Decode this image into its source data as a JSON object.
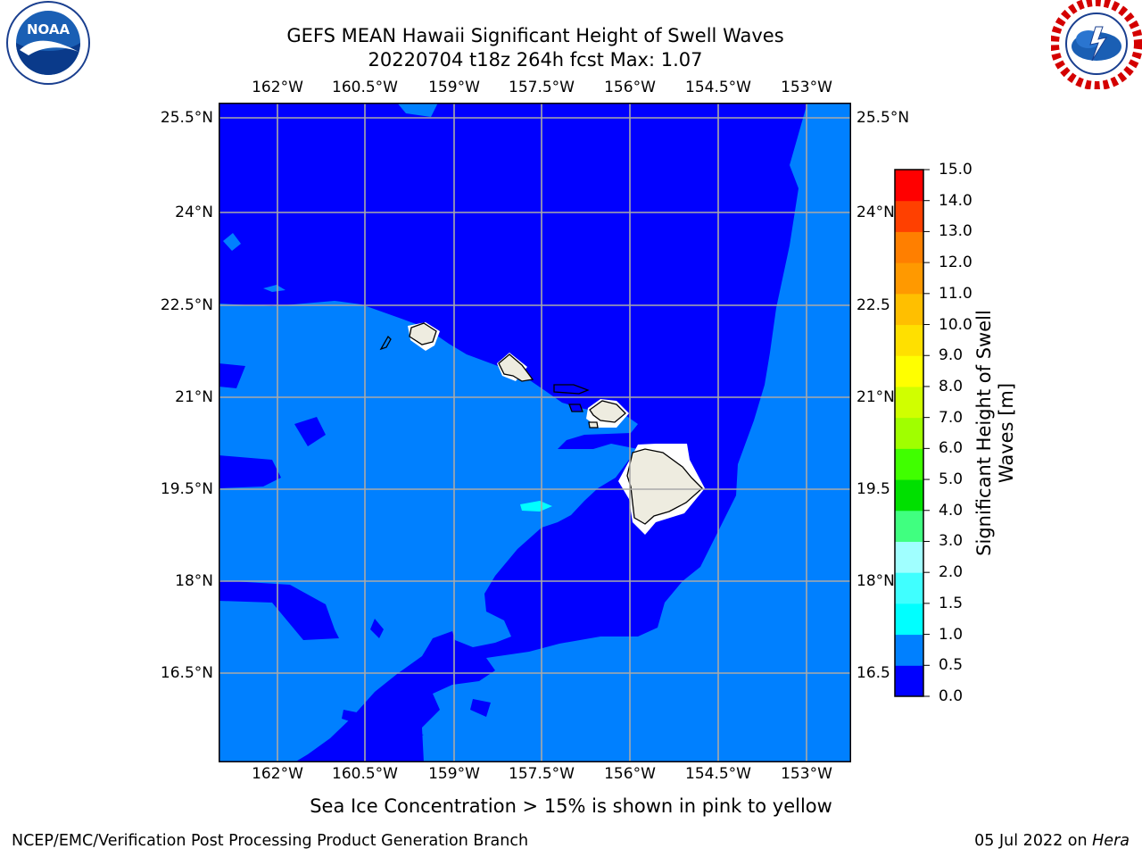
{
  "title_line1": "GEFS MEAN Hawaii Significant Height of Swell Waves",
  "title_line2": "20220704 t18z 264h fcst   Max: 1.07",
  "lon_ticks": [
    "162°W",
    "160.5°W",
    "159°W",
    "157.5°W",
    "156°W",
    "154.5°W",
    "153°W"
  ],
  "lat_ticks": [
    "25.5°N",
    "24°N",
    "22.5°N",
    "21°N",
    "19.5°N",
    "18°N",
    "16.5°N"
  ],
  "lat_ticks_right": [
    "25.5°N",
    "24°N",
    "22.5",
    "21°N",
    "19.5",
    "18°N",
    "16.5"
  ],
  "colorbar": {
    "label": "Significant Height of Swell Waves [m]",
    "ticks": [
      "15.0",
      "14.0",
      "13.0",
      "12.0",
      "11.0",
      "10.0",
      "9.0",
      "8.0",
      "7.0",
      "6.0",
      "5.0",
      "4.0",
      "3.0",
      "2.0",
      "1.5",
      "1.0",
      "0.5",
      "0.0"
    ],
    "levels": [
      0.0,
      0.5,
      1.0,
      1.5,
      2.0,
      3.0,
      4.0,
      5.0,
      6.0,
      7.0,
      8.0,
      9.0,
      10.0,
      11.0,
      12.0,
      13.0,
      14.0,
      15.0
    ],
    "colors": [
      "#0000ff",
      "#0080ff",
      "#00ffff",
      "#40ffff",
      "#a0ffff",
      "#40ff80",
      "#00e000",
      "#40ff00",
      "#a0ff00",
      "#d0ff00",
      "#ffff00",
      "#ffe000",
      "#ffbf00",
      "#ff9900",
      "#ff7f00",
      "#ff4000",
      "#ff0000"
    ]
  },
  "sea_ice_note": "Sea Ice Concentration > 15% is shown in pink to yellow",
  "footer_left": "NCEP/EMC/Verification Post Processing Product Generation Branch",
  "footer_right_prefix": "05 Jul 2022 on ",
  "footer_right_host": "Hera",
  "logos": {
    "left": "noaa-logo",
    "right": "nws-logo"
  },
  "colors": {
    "deep": "#0000ff",
    "mid": "#0080ff",
    "light": "#00ffff",
    "land": "#eeece0"
  }
}
